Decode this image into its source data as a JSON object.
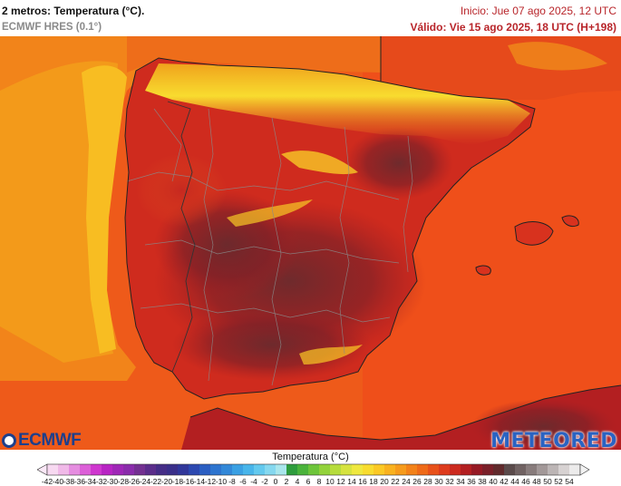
{
  "header": {
    "title": "2 metros: Temperatura (°C).",
    "model": "ECMWF HRES (0.1°)",
    "init": "Inicio: Jue 07 ago 2025, 12 UTC",
    "valid": "Válido: Vie 15 ago 2025, 18 UTC (H+198)"
  },
  "logos": {
    "left": "ECMWF",
    "right": "METEORED"
  },
  "legend": {
    "title": "Temperatura (°C)",
    "ticks": [
      "-42",
      "-40",
      "-38",
      "-36",
      "-34",
      "-32",
      "-30",
      "-28",
      "-26",
      "-24",
      "-22",
      "-20",
      "-18",
      "-16",
      "-14",
      "-12",
      "-10",
      "-8",
      "-6",
      "-4",
      "-2",
      "0",
      "2",
      "4",
      "6",
      "8",
      "10",
      "12",
      "14",
      "16",
      "18",
      "20",
      "22",
      "24",
      "26",
      "28",
      "30",
      "32",
      "34",
      "36",
      "38",
      "40",
      "42",
      "44",
      "46",
      "48",
      "50",
      "52",
      "54"
    ],
    "colors": [
      "#f7d9f1",
      "#f0b9e8",
      "#e58de0",
      "#dc5fd8",
      "#cf36cf",
      "#b824c4",
      "#9f27b7",
      "#8a2cab",
      "#733091",
      "#5b2d8b",
      "#452d87",
      "#3a2f8a",
      "#31379a",
      "#2c48b0",
      "#2b5ec2",
      "#2d74cf",
      "#3288d8",
      "#3aa0e3",
      "#48b5ea",
      "#63c9ee",
      "#85d8ef",
      "#a9e6ec",
      "#2e9c3d",
      "#4ab33b",
      "#6dc53a",
      "#92d23a",
      "#b6dc3c",
      "#d6e33f",
      "#efe83f",
      "#f8dc2f",
      "#fbc925",
      "#f9b21f",
      "#f69b1c",
      "#f38219",
      "#ef6a18",
      "#e8511a",
      "#de3b1d",
      "#cc2a1f",
      "#b31f21",
      "#961a24",
      "#7a2029",
      "#612a2c",
      "#5a4a4a",
      "#706262",
      "#887c7c",
      "#a29898",
      "#bcb5b5",
      "#d7d2d2",
      "#ecebeb"
    ]
  }
}
